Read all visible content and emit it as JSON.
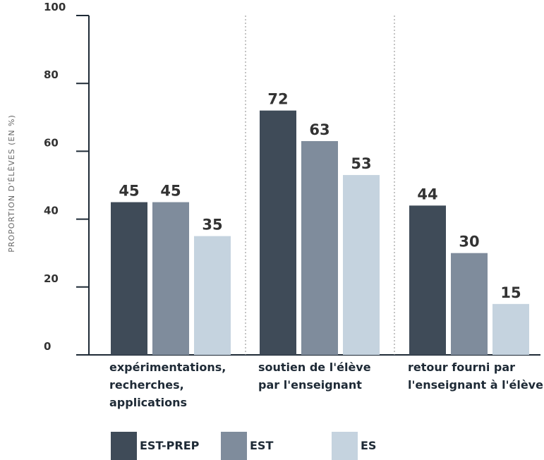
{
  "chart_data": {
    "type": "bar",
    "ylabel": "PROPORTION D'ÉLÈVES (EN %)",
    "ylim": [
      0,
      100
    ],
    "yticks": [
      "0",
      "20",
      "40",
      "60",
      "80",
      "100"
    ],
    "grid": false,
    "legend_position": "bottom",
    "categories": [
      [
        "expérimentations,",
        "recherches,",
        "applications"
      ],
      [
        "soutien de l'élève",
        "par l'enseignant"
      ],
      [
        "retour fourni par",
        "l'enseignant à l'élève"
      ]
    ],
    "series": [
      {
        "name": "EST-PREP",
        "color": "#3f4b58",
        "values": [
          45,
          72,
          44
        ]
      },
      {
        "name": "EST",
        "color": "#7f8c9c",
        "values": [
          45,
          63,
          30
        ]
      },
      {
        "name": "ES",
        "color": "#c5d3df",
        "values": [
          35,
          53,
          15
        ]
      }
    ]
  }
}
